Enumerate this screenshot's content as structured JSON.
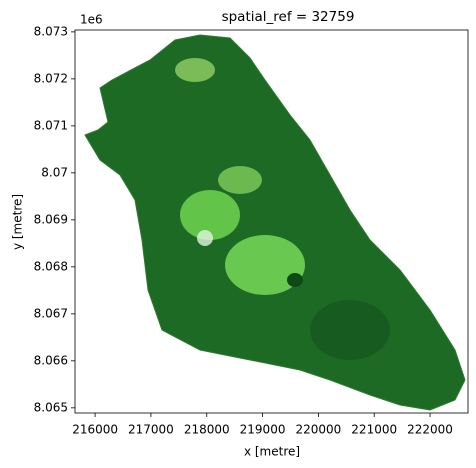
{
  "chart_data": {
    "type": "image",
    "title": "spatial_ref = 32759",
    "x_label": "x [metre]",
    "y_label": "y [metre]",
    "y_offset_label": "1e6",
    "xlim": [
      215640,
      222680
    ],
    "ylim": [
      8.06489,
      8.07304
    ],
    "xticks": [
      216000,
      217000,
      218000,
      219000,
      220000,
      221000,
      222000
    ],
    "yticks": [
      8.065,
      8.066,
      8.067,
      8.068,
      8.069,
      8.07,
      8.071,
      8.072,
      8.073
    ]
  }
}
